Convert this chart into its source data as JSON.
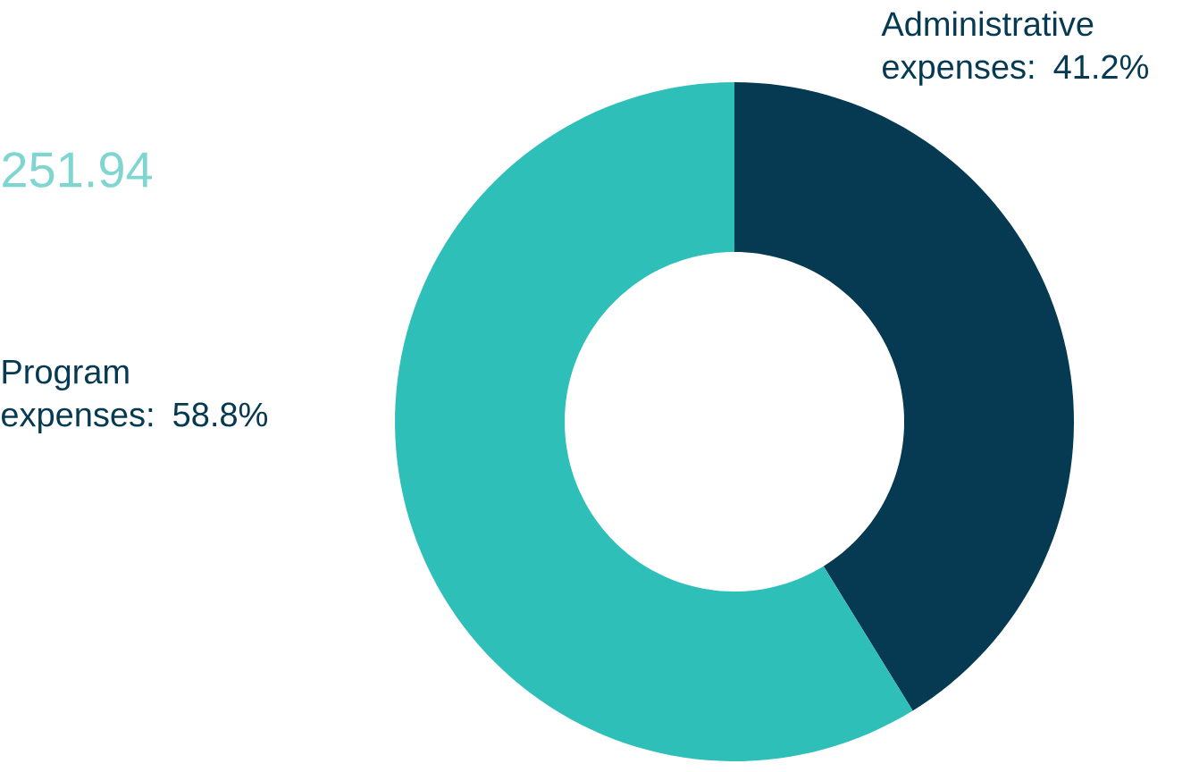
{
  "chart_data": {
    "type": "donut",
    "categories": [
      "Administrative expenses",
      "Program expenses"
    ],
    "values": [
      41.2,
      58.8
    ],
    "colors": [
      "#053a52",
      "#2ebfb8"
    ],
    "value_labels": [
      ": 41.2%",
      ": 58.8%"
    ],
    "annotations": [
      "251.94"
    ]
  }
}
